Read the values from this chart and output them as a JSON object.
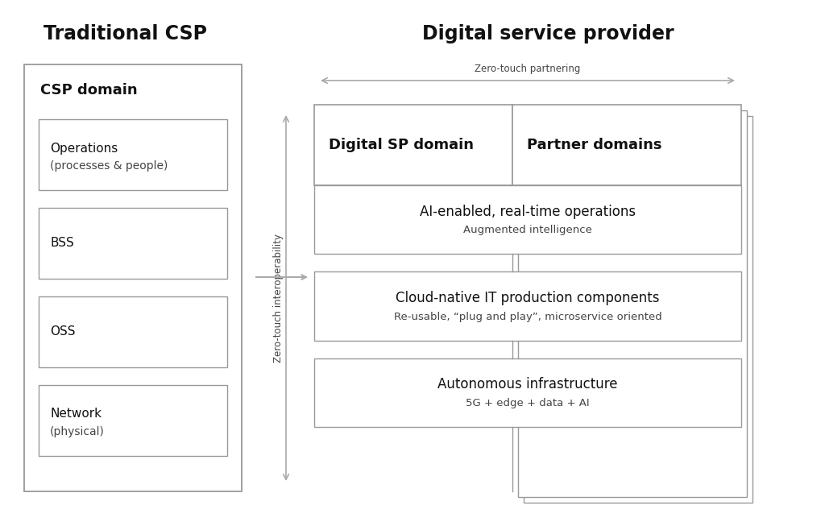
{
  "bg_color": "#ffffff",
  "title_left": "Traditional CSP",
  "title_right": "Digital service provider",
  "csp_domain_label": "CSP domain",
  "csp_boxes": [
    {
      "label": "Operations\n(processes & people)"
    },
    {
      "label": "BSS"
    },
    {
      "label": "OSS"
    },
    {
      "label": "Network\n(physical)"
    }
  ],
  "dsp_domain_label": "Digital SP domain",
  "partner_domain_label": "Partner domains",
  "dsp_inner_boxes": [
    {
      "title": "AI-enabled, real-time operations",
      "subtitle": "Augmented intelligence"
    },
    {
      "title": "Cloud-native IT production components",
      "subtitle": "Re-usable, “plug and play”, microservice oriented"
    },
    {
      "title": "Autonomous infrastructure",
      "subtitle": "5G + edge + data + AI"
    }
  ],
  "arrow_label_horiz": "Zero-touch partnering",
  "arrow_label_vert": "Zero-touch interoperability",
  "line_color": "#aaaaaa",
  "box_edge_color": "#999999",
  "text_color": "#111111",
  "subtitle_color": "#444444"
}
